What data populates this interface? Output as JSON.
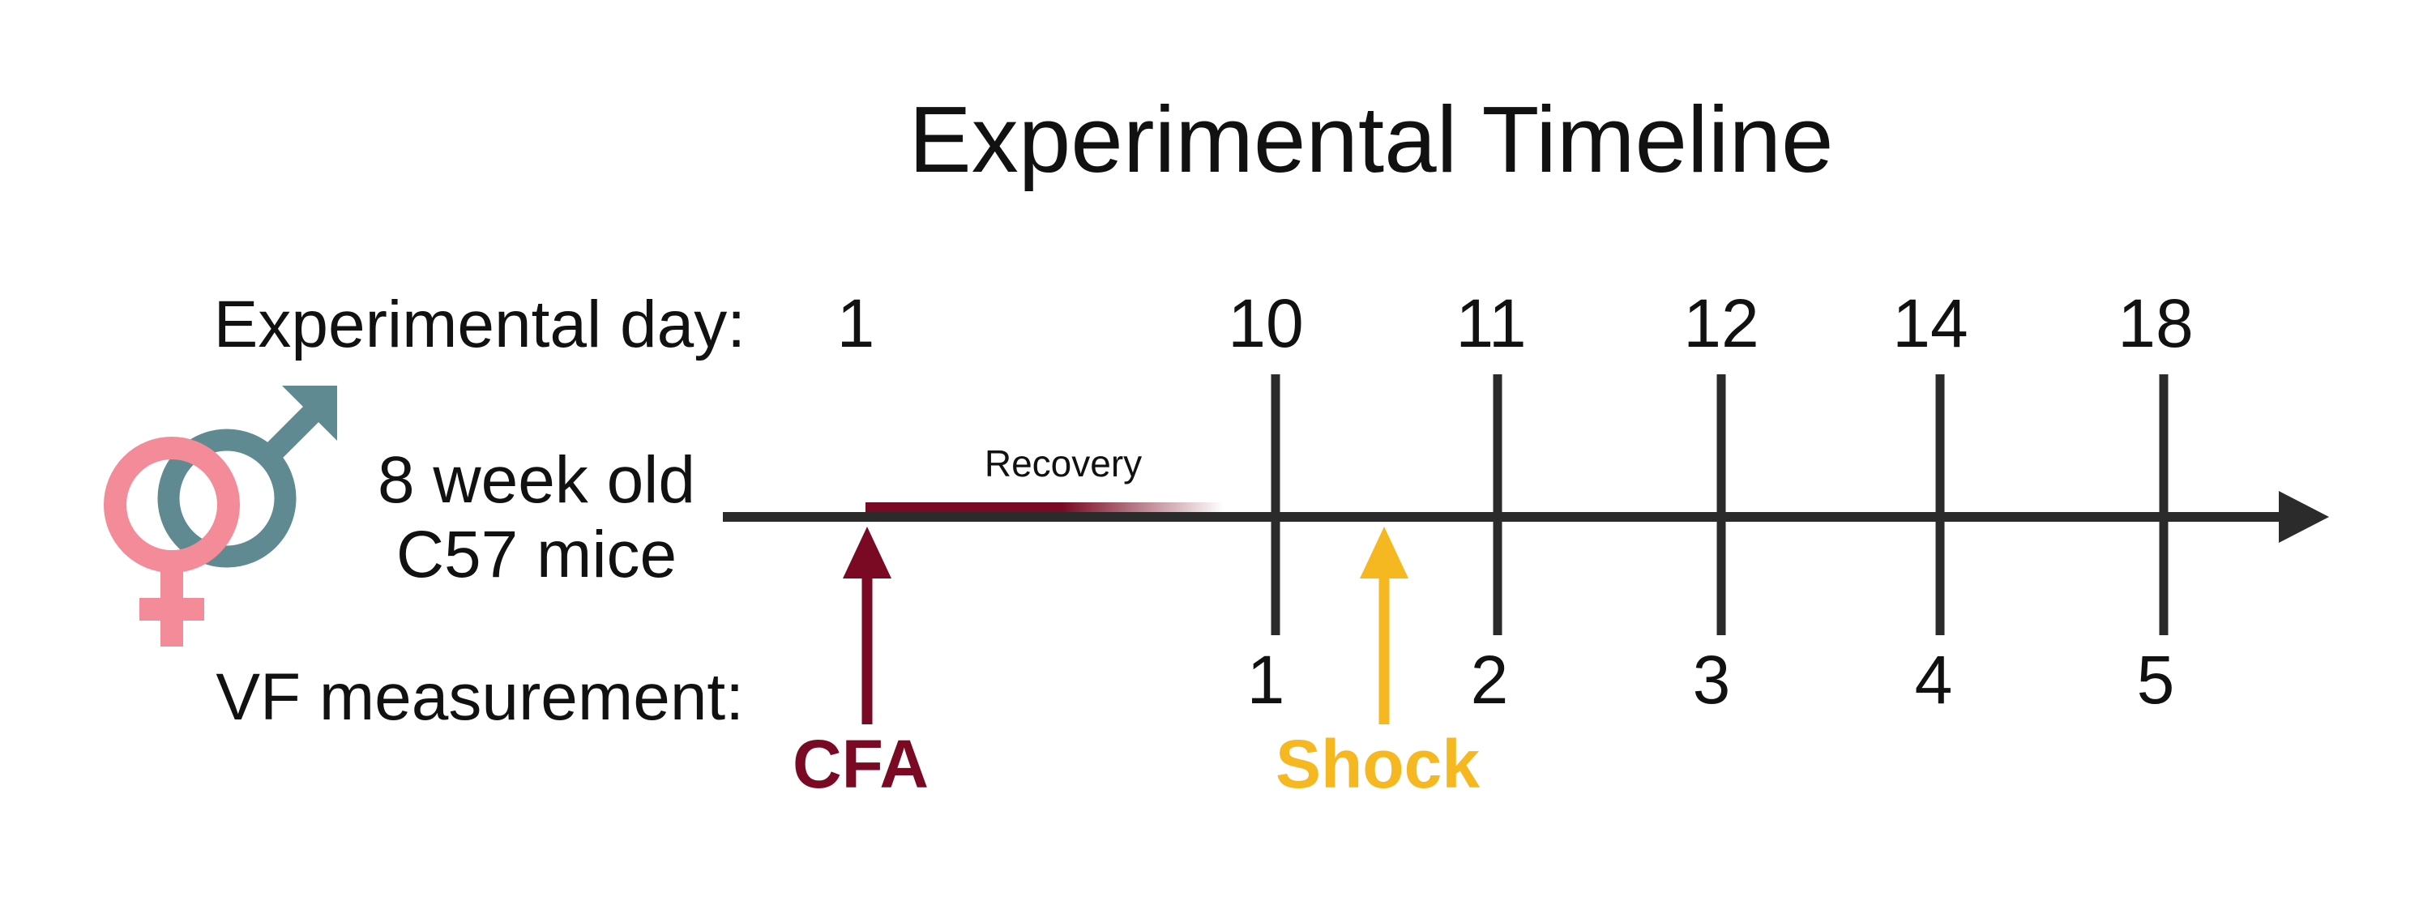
{
  "title": "Experimental Timeline",
  "row_labels": {
    "experimental_day": "Experimental day:",
    "vf_measurement": "VF measurement:"
  },
  "subject": {
    "line1": "8 week old",
    "line2": "C57 mice",
    "icon": "female-male-symbols-icon"
  },
  "days": [
    "1",
    "10",
    "11",
    "12",
    "14",
    "18"
  ],
  "vf_measurements": [
    "1",
    "2",
    "3",
    "4",
    "5"
  ],
  "recovery_label": "Recovery",
  "events": {
    "cfa": {
      "label": "CFA",
      "color": "#7a0a24"
    },
    "shock": {
      "label": "Shock",
      "color": "#f6b820"
    }
  },
  "colors": {
    "axis": "#2b2b2b",
    "female_symbol": "#f48b98",
    "male_symbol": "#5f8a91",
    "recovery_bar": "#7a0a24"
  }
}
